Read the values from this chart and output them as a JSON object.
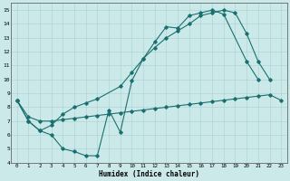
{
  "xlabel": "Humidex (Indice chaleur)",
  "bg_color": "#cce9e9",
  "grid_color": "#aed4d4",
  "line_color": "#1a7070",
  "xlim": [
    -0.5,
    23.5
  ],
  "ylim": [
    4,
    15.5
  ],
  "xticks": [
    0,
    1,
    2,
    3,
    4,
    5,
    6,
    7,
    8,
    9,
    10,
    11,
    12,
    13,
    14,
    15,
    16,
    17,
    18,
    19,
    20,
    21,
    22,
    23
  ],
  "yticks": [
    4,
    5,
    6,
    7,
    8,
    9,
    10,
    11,
    12,
    13,
    14,
    15
  ],
  "line1_x": [
    0,
    1,
    2,
    3,
    4,
    5,
    6,
    7,
    8,
    9,
    10,
    11,
    12,
    13,
    14,
    15,
    16,
    17,
    18,
    20,
    21
  ],
  "line1_y": [
    8.5,
    7.0,
    6.3,
    6.0,
    5.0,
    4.8,
    4.5,
    4.5,
    7.8,
    6.2,
    9.9,
    11.5,
    12.7,
    13.8,
    13.7,
    14.6,
    14.8,
    15.0,
    14.7,
    11.3,
    10.0
  ],
  "line2_x": [
    0,
    1,
    2,
    3,
    4,
    5,
    6,
    7,
    8,
    9,
    10,
    11,
    12,
    13,
    14,
    15,
    16,
    17,
    18,
    19,
    20,
    21,
    22,
    23
  ],
  "line2_y": [
    8.5,
    7.3,
    7.0,
    7.0,
    7.1,
    7.2,
    7.3,
    7.4,
    7.5,
    7.6,
    7.7,
    7.8,
    7.9,
    8.0,
    8.1,
    8.2,
    8.3,
    8.4,
    8.5,
    8.6,
    8.7,
    8.8,
    8.9,
    8.5
  ],
  "line3_x": [
    0,
    1,
    2,
    3,
    4,
    5,
    6,
    7,
    9,
    10,
    11,
    12,
    13,
    14,
    15,
    16,
    17,
    18,
    19,
    20,
    21,
    22
  ],
  "line3_y": [
    8.5,
    7.0,
    6.3,
    6.7,
    7.5,
    8.0,
    8.3,
    8.6,
    9.5,
    10.5,
    11.5,
    12.3,
    13.0,
    13.5,
    14.0,
    14.6,
    14.8,
    15.0,
    14.8,
    13.3,
    11.3,
    10.0
  ]
}
